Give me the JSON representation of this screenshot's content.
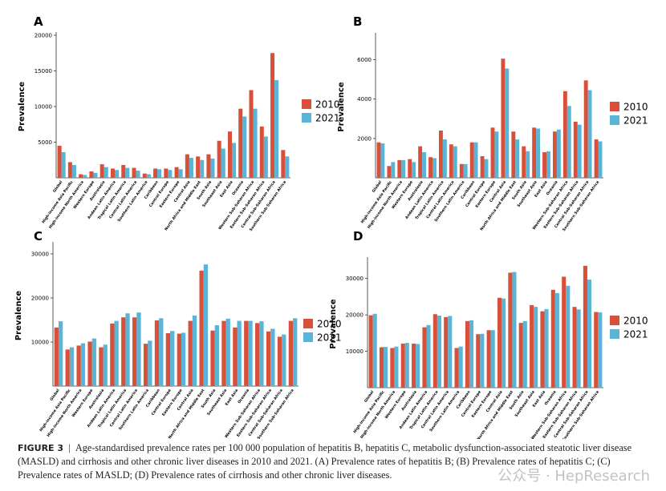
{
  "chart_data": [
    {
      "panel": "A",
      "type": "bar",
      "ylabel": "Prevalence",
      "categories": [
        "Global",
        "High-income Asia Pacific",
        "High-income North America",
        "Western Europe",
        "Australasia",
        "Andean Latin America",
        "Tropical Latin America",
        "Central Latin America",
        "Southern Latin America",
        "Caribbean",
        "Central Europe",
        "Eastern Europe",
        "Central Asia",
        "North Africa and Middle East",
        "South Asia",
        "Southeast Asia",
        "East Asia",
        "Oceania",
        "Western Sub-Saharan Africa",
        "Eastern Sub-Saharan Africa",
        "Central Sub-Saharan Africa",
        "Southern Sub-Saharan Africa"
      ],
      "series": [
        {
          "name": "2010",
          "color": "#d9503a",
          "values": [
            4500,
            2200,
            500,
            900,
            1900,
            1300,
            1800,
            1400,
            600,
            1300,
            1300,
            1500,
            3300,
            3000,
            3300,
            5200,
            6500,
            9700,
            12300,
            7200,
            17500,
            3900
          ]
        },
        {
          "name": "2021",
          "color": "#5ab4d6",
          "values": [
            3600,
            1800,
            400,
            700,
            1500,
            1100,
            1400,
            1000,
            500,
            1200,
            1100,
            1200,
            2800,
            2500,
            2700,
            4100,
            4900,
            8600,
            9700,
            5800,
            13700,
            3000
          ]
        }
      ],
      "ylim": [
        0,
        20000
      ],
      "yticks": [
        5000,
        10000,
        15000,
        20000
      ]
    },
    {
      "panel": "B",
      "type": "bar",
      "ylabel": "Prevalence",
      "categories": [
        "Global",
        "High-income Asia Pacific",
        "High-income North America",
        "Western Europe",
        "Australasia",
        "Andean Latin America",
        "Tropical Latin America",
        "Central Latin America",
        "Southern Latin America",
        "Caribbean",
        "Central Europe",
        "Eastern Europe",
        "Central Asia",
        "North Africa and Middle East",
        "South Asia",
        "Southeast Asia",
        "East Asia",
        "Oceania",
        "Western Sub-Saharan Africa",
        "Eastern Sub-Saharan Africa",
        "Central Sub-Saharan Africa",
        "Southern Sub-Saharan Africa"
      ],
      "series": [
        {
          "name": "2010",
          "color": "#d9503a",
          "values": [
            1800,
            600,
            900,
            950,
            1600,
            1050,
            2400,
            1700,
            700,
            1800,
            1100,
            2550,
            6050,
            2350,
            1600,
            2550,
            1300,
            2350,
            4400,
            2850,
            4950,
            1950
          ]
        },
        {
          "name": "2021",
          "color": "#5ab4d6",
          "values": [
            1750,
            800,
            900,
            800,
            1300,
            1000,
            1950,
            1600,
            700,
            1800,
            950,
            2350,
            5550,
            1950,
            1350,
            2500,
            1350,
            2450,
            3650,
            2700,
            4450,
            1850
          ]
        }
      ],
      "ylim": [
        0,
        7200
      ],
      "yticks": [
        2000,
        4000,
        6000
      ]
    },
    {
      "panel": "C",
      "type": "bar",
      "ylabel": "Prevalence",
      "categories": [
        "Global",
        "High-income Asia Pacific",
        "High-income North America",
        "Western Europe",
        "Australasia",
        "Andean Latin America",
        "Tropical Latin America",
        "Central Latin America",
        "Southern Latin America",
        "Caribbean",
        "Central Europe",
        "Eastern Europe",
        "Central Asia",
        "North Africa and Middle East",
        "South Asia",
        "Southeast Asia",
        "East Asia",
        "Oceania",
        "Western Sub-Saharan Africa",
        "Eastern Sub-Saharan Africa",
        "Central Sub-Saharan Africa",
        "Southern Sub-Saharan Africa"
      ],
      "series": [
        {
          "name": "2010",
          "color": "#d9503a",
          "values": [
            13300,
            8300,
            9200,
            10100,
            8800,
            14200,
            15600,
            15600,
            9600,
            14900,
            12000,
            11900,
            14800,
            26200,
            12600,
            14800,
            13300,
            14800,
            14300,
            12400,
            11200,
            14800
          ]
        },
        {
          "name": "2021",
          "color": "#5ab4d6",
          "values": [
            14700,
            8800,
            9700,
            10800,
            9400,
            14800,
            16500,
            16700,
            10300,
            15400,
            12500,
            12100,
            16000,
            27600,
            13800,
            15300,
            14800,
            14800,
            14700,
            13000,
            11700,
            15400
          ]
        }
      ],
      "ylim": [
        0,
        32000
      ],
      "yticks": [
        10000,
        20000,
        30000
      ]
    },
    {
      "panel": "D",
      "type": "bar",
      "ylabel": "Prevalence",
      "categories": [
        "Global",
        "High-income Asia Pacific",
        "High-income North America",
        "Western Europe",
        "Australasia",
        "Andean Latin America",
        "Tropical Latin America",
        "Central Latin America",
        "Southern Latin America",
        "Caribbean",
        "Central Europe",
        "Eastern Europe",
        "Central Asia",
        "North Africa and Middle East",
        "South Asia",
        "Southeast Asia",
        "East Asia",
        "Oceania",
        "Western Sub-Saharan Africa",
        "Eastern Sub-Saharan Africa",
        "Central Sub-Saharan Africa",
        "Southern Sub-Saharan Africa"
      ],
      "series": [
        {
          "name": "2010",
          "color": "#d9503a",
          "values": [
            19900,
            11100,
            10900,
            12100,
            12100,
            16600,
            20200,
            19400,
            10900,
            18300,
            14700,
            15800,
            24700,
            31600,
            17800,
            22700,
            21000,
            26900,
            30500,
            22200,
            33500,
            20800
          ]
        },
        {
          "name": "2021",
          "color": "#5ab4d6",
          "values": [
            20300,
            11200,
            11300,
            12300,
            12000,
            17200,
            19800,
            19700,
            11300,
            18500,
            14800,
            15800,
            24500,
            31800,
            18300,
            22200,
            21600,
            26000,
            28000,
            21500,
            29700,
            20700
          ]
        }
      ],
      "ylim": [
        0,
        35000
      ],
      "yticks": [
        10000,
        20000,
        30000
      ]
    }
  ],
  "caption": {
    "label": "FIGURE 3",
    "separator": "|",
    "text": "Age-standardised prevalence rates per 100 000 population of hepatitis B, hepatitis C, metabolic dysfunction-associated steatotic liver disease (MASLD) and cirrhosis and other chronic liver diseases in 2010 and 2021. (A) Prevalence rates of hepatitis B; (B) Prevalence rates of hepatitis C; (C) Prevalence rates of MASLD; (D) Prevalence rates of cirrhosis and other chronic liver diseases."
  },
  "watermark": "公众号 · HepResearch"
}
